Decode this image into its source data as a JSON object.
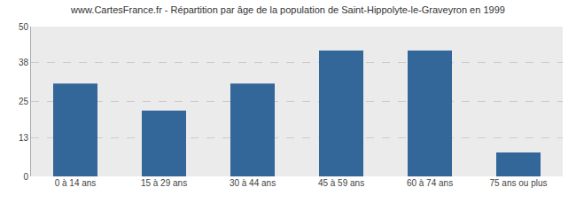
{
  "chart_data": {
    "type": "bar",
    "title": "www.CartesFrance.fr - Répartition par âge de la population de Saint-Hippolyte-le-Graveyron en 1999",
    "categories": [
      "0 à 14 ans",
      "15 à 29 ans",
      "30 à 44 ans",
      "45 à 59 ans",
      "60 à 74 ans",
      "75 ans ou plus"
    ],
    "values": [
      31,
      22,
      31,
      42,
      42,
      8
    ],
    "color": "#336699",
    "ylim": [
      0,
      50
    ],
    "yticks": [
      0,
      13,
      25,
      38,
      50
    ],
    "grid": true
  }
}
